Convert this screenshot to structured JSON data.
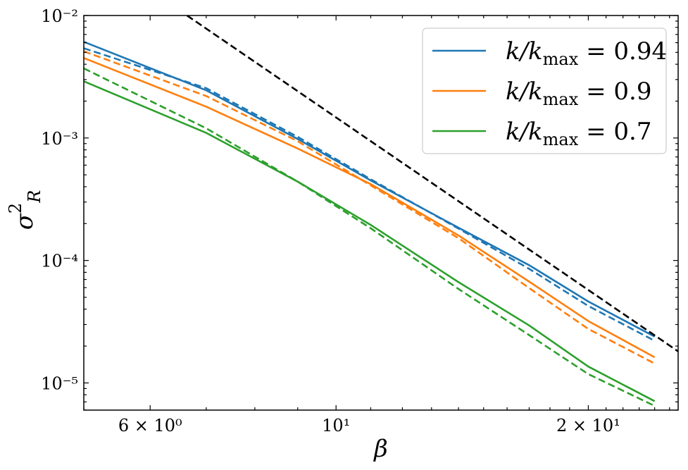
{
  "chart_data": {
    "type": "line",
    "title": "",
    "xlabel": "β",
    "ylabel_main": "σ",
    "ylabel_sup": "2",
    "ylabel_sub": "R",
    "xscale": "log",
    "yscale": "log",
    "xlim": [
      5.0,
      25.6
    ],
    "ylim": [
      6e-06,
      0.01
    ],
    "grid": false,
    "legend_position": "top-right",
    "x_ticks": [
      {
        "value": 6,
        "label": "6 × 10⁰"
      },
      {
        "value": 10,
        "label": "10¹"
      },
      {
        "value": 20,
        "label": "2 × 10¹"
      }
    ],
    "y_ticks": [
      {
        "value": 0.01,
        "label": "10⁻²"
      },
      {
        "value": 0.001,
        "label": "10⁻³"
      },
      {
        "value": 0.0001,
        "label": "10⁻⁴"
      },
      {
        "value": 1e-05,
        "label": "10⁻⁵"
      }
    ],
    "series": [
      {
        "name": "k/kmax = 0.94",
        "color": "#1f77b4",
        "style": "solid",
        "x": [
          5.0,
          7.0,
          9.0,
          11.0,
          14.0,
          17.0,
          20.0,
          24.0
        ],
        "y": [
          0.0061,
          0.00245,
          0.00098,
          0.00045,
          0.000185,
          9.15e-05,
          4.62e-05,
          2.39e-05
        ]
      },
      {
        "name": "",
        "color": "#1f77b4",
        "style": "dashed",
        "x": [
          5.0,
          7.0,
          9.0,
          11.0,
          14.0,
          17.0,
          20.0,
          24.0
        ],
        "y": [
          0.0054,
          0.00255,
          0.00102,
          0.00046,
          0.000182,
          8.55e-05,
          4.25e-05,
          2.21e-05
        ]
      },
      {
        "name": "k/kmax = 0.9",
        "color": "#ff7f0e",
        "style": "solid",
        "x": [
          5.0,
          7.0,
          9.0,
          11.0,
          14.0,
          17.0,
          20.0,
          24.0
        ],
        "y": [
          0.0045,
          0.0018,
          0.00082,
          0.00042,
          0.00016,
          6.72e-05,
          3.2e-05,
          1.62e-05
        ]
      },
      {
        "name": "",
        "color": "#ff7f0e",
        "style": "dashed",
        "x": [
          5.0,
          7.0,
          9.0,
          11.0,
          14.0,
          17.0,
          20.0,
          24.0
        ],
        "y": [
          0.0051,
          0.0022,
          0.00094,
          0.00041,
          0.000152,
          5.95e-05,
          2.76e-05,
          1.44e-05
        ]
      },
      {
        "name": "k/kmax = 0.7",
        "color": "#2ca02c",
        "style": "solid",
        "x": [
          5.0,
          7.0,
          9.0,
          11.0,
          14.0,
          17.0,
          20.0,
          24.0
        ],
        "y": [
          0.0029,
          0.0011,
          0.00044,
          0.000195,
          6.65e-05,
          2.95e-05,
          1.36e-05,
          7.1e-06
        ]
      },
      {
        "name": "",
        "color": "#2ca02c",
        "style": "dashed",
        "x": [
          5.0,
          7.0,
          9.0,
          11.0,
          14.0,
          17.0,
          20.0,
          24.0
        ],
        "y": [
          0.0037,
          0.0012,
          0.00044,
          0.000183,
          5.85e-05,
          2.46e-05,
          1.18e-05,
          6.5e-06
        ]
      },
      {
        "name": "",
        "color": "#000000",
        "style": "dashed",
        "x": [
          6.64,
          25.6
        ],
        "y": [
          0.01,
          1.81e-05
        ]
      }
    ],
    "legend": [
      {
        "label_main": "k/k",
        "label_sub": "max",
        "label_tail": " = 0.94",
        "color": "#1f77b4"
      },
      {
        "label_main": "k/k",
        "label_sub": "max",
        "label_tail": " = 0.9",
        "color": "#ff7f0e"
      },
      {
        "label_main": "k/k",
        "label_sub": "max",
        "label_tail": " = 0.7",
        "color": "#2ca02c"
      }
    ]
  }
}
